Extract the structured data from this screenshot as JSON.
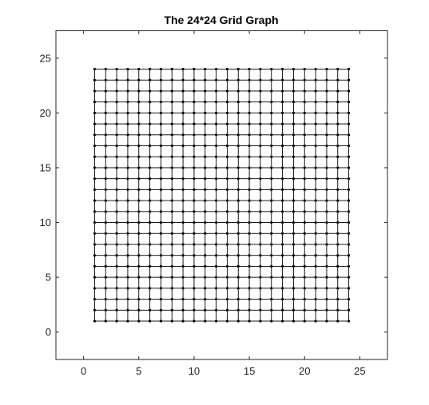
{
  "figure": {
    "title": "The 24*24 Grid Graph"
  },
  "chart_data": {
    "type": "graph",
    "title": "The 24*24 Grid Graph",
    "grid_size": 24,
    "nodes": {
      "x_from": 1,
      "x_to": 24,
      "y_from": 1,
      "y_to": 24,
      "step": 1
    },
    "edges": "each node connected to its horizontal and vertical neighbours",
    "xlim": [
      -2.5,
      27.5
    ],
    "ylim": [
      -2.5,
      27.5
    ],
    "x_ticks": [
      "0",
      "5",
      "10",
      "15",
      "20",
      "25"
    ],
    "y_ticks": [
      "0",
      "5",
      "10",
      "15",
      "20",
      "25"
    ],
    "xlabel": "",
    "ylabel": "",
    "grid": false,
    "box": true,
    "colors": {
      "edge": "#000000",
      "node": "#000000",
      "axes": "#262626"
    }
  }
}
